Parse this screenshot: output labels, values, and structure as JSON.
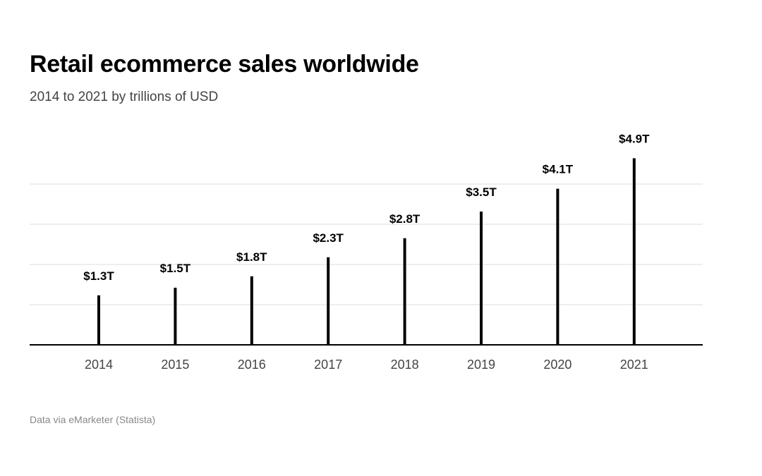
{
  "chart_data": {
    "type": "bar",
    "title": "Retail ecommerce sales worldwide",
    "subtitle": "2014 to 2021 by trillions of USD",
    "categories": [
      "2014",
      "2015",
      "2016",
      "2017",
      "2018",
      "2019",
      "2020",
      "2021"
    ],
    "values": [
      1.3,
      1.5,
      1.8,
      2.3,
      2.8,
      3.5,
      4.1,
      4.9
    ],
    "data_labels": [
      "$1.3T",
      "$1.5T",
      "$1.8T",
      "$2.3T",
      "$2.8T",
      "$3.5T",
      "$4.1T",
      "$4.9T"
    ],
    "xlabel": "",
    "ylabel": "",
    "ylim": [
      0,
      5
    ],
    "gridlines": [
      1,
      2,
      3,
      4
    ],
    "grid": true,
    "legend": "none",
    "source": "Data via eMarketer (Statista)",
    "colors": {
      "bar": "#000000",
      "grid": "#dddddd",
      "axis": "#000000"
    }
  }
}
